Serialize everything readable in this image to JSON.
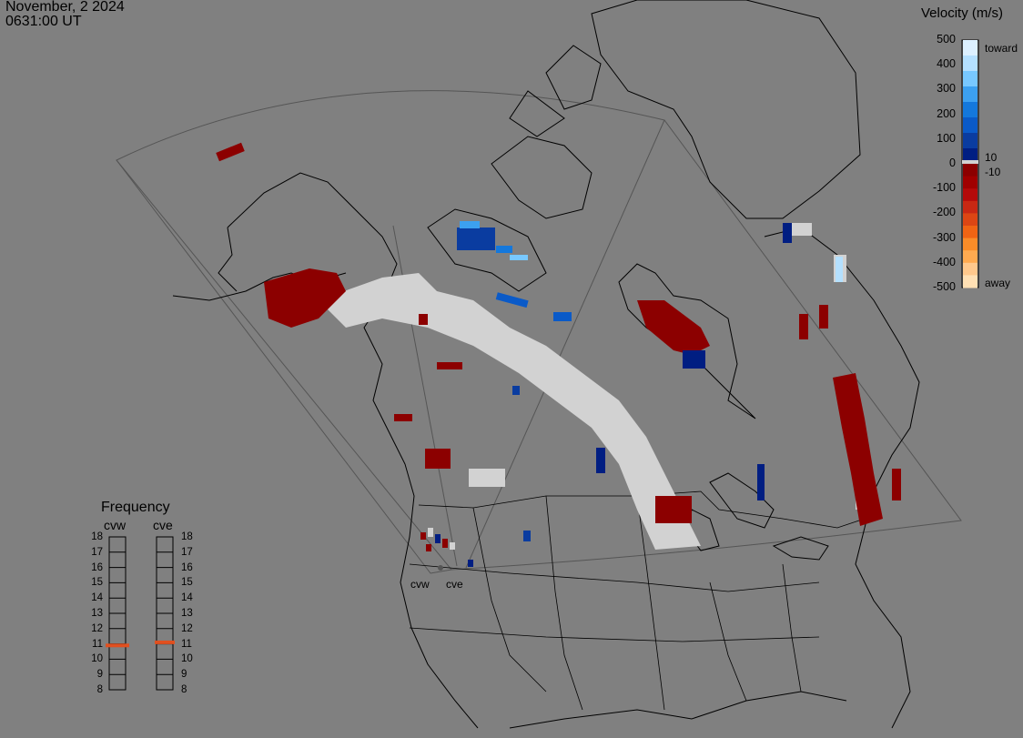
{
  "header": {
    "date": "November, 2 2024",
    "time": "0631:00 UT"
  },
  "velocity_scale": {
    "title": "Velocity (m/s)",
    "ticks": [
      "500",
      "400",
      "300",
      "200",
      "100",
      "0",
      "-100",
      "-200",
      "-300",
      "-400",
      "-500"
    ],
    "inner_labels": [
      "10",
      "-10"
    ],
    "toward_label": "toward",
    "away_label": "away",
    "colors_toward": [
      "#dcf0ff",
      "#b4e0ff",
      "#78c8ff",
      "#3ca0f0",
      "#1478dc",
      "#0a5ac8",
      "#0a3ca0",
      "#001e82"
    ],
    "colors_away": [
      "#8c0000",
      "#a00000",
      "#b40a0a",
      "#c82814",
      "#dc4614",
      "#f06414",
      "#fa8c28",
      "#ffaa50",
      "#ffc88c",
      "#ffe0b4"
    ],
    "ground_scatter": "#d2d2d2"
  },
  "frequency": {
    "title": "Frequency",
    "radars": [
      "cvw",
      "cve"
    ],
    "scale": [
      "18",
      "17",
      "16",
      "15",
      "14",
      "13",
      "12",
      "11",
      "10",
      "9",
      "8"
    ],
    "cvw_mhz": 10.9,
    "cve_mhz": 11.1,
    "marker_color": "#e05020"
  },
  "map": {
    "radar_labels": [
      "cvw",
      "cve"
    ],
    "fill_color": "#808080",
    "coastline_color": "#000000"
  }
}
